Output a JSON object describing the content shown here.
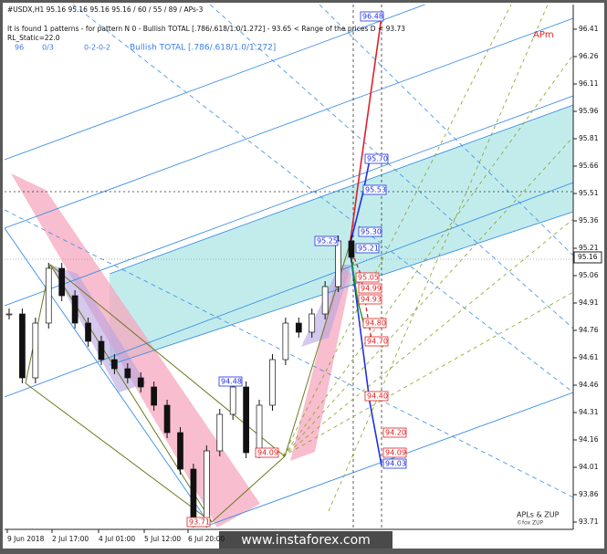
{
  "header": {
    "lines": [
      "#USDX,H1 95.16 95.16 95.16 95.16 / 60 / 55 / 89 / APs-3",
      "It is found 1 patterns - for pattern N 0 - Bullish TOTAL [.786/.618/1.0/1.272] - 93.65 < Range of the prices D < 93.73",
      "RL_Static=22.0"
    ],
    "status": [
      "96",
      "0/3",
      "0-2-0-2",
      "Bullish TOTAL [.786/.618/1.0/1.272]"
    ]
  },
  "price_axis": {
    "ticks": [
      "96.41",
      "96.26",
      "96.11",
      "95.96",
      "95.81",
      "95.66",
      "95.51",
      "95.36",
      "95.21",
      "95.06",
      "94.91",
      "94.76",
      "94.61",
      "94.46",
      "94.31",
      "94.16",
      "94.01",
      "93.86",
      "93.71"
    ],
    "current": "95.16"
  },
  "time_axis": [
    "9 Jun 2018",
    "2 Jul 17:00",
    "4 Jul 01:00",
    "5 Jul 12:00",
    "6 Jul 20:00"
  ],
  "levels": [
    "96.48",
    "95.70",
    "95.53",
    "95.30",
    "95.25",
    "95.21",
    "95.05",
    "94.99",
    "94.93",
    "94.80",
    "94.70",
    "94.48",
    "94.40",
    "94.20",
    "94.09",
    "94.09",
    "94.03",
    "93.71"
  ],
  "price_path": [
    94.85,
    94.5,
    94.8,
    95.1,
    94.95,
    94.8,
    94.7,
    94.6,
    94.55,
    94.5,
    94.45,
    94.35,
    94.2,
    94.0,
    93.71,
    94.1,
    94.3,
    94.45,
    94.09,
    94.35,
    94.6,
    94.8,
    94.75,
    94.85,
    95.0,
    95.25,
    95.16
  ],
  "annotations": {
    "apm": "APm",
    "brand": "APLs & ZUP",
    "copyright": "©fox ZUP",
    "watermark": "www.instaforex.com"
  }
}
